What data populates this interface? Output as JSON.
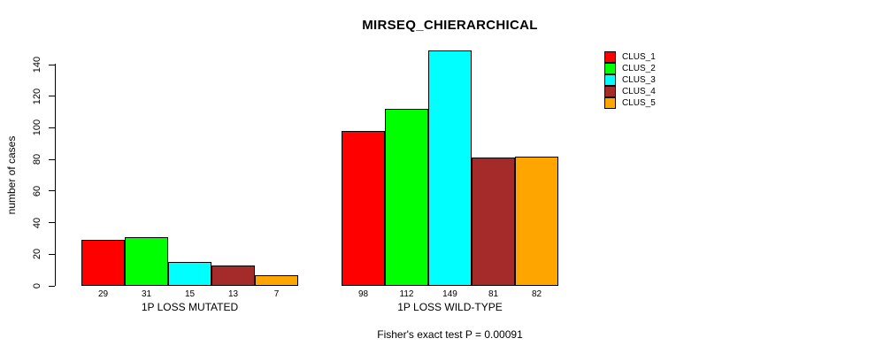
{
  "window": {
    "background": "#FFFFFF",
    "text_color": "#000000"
  },
  "chart_data": {
    "type": "bar",
    "title": "MIRSEQ_CHIERARCHICAL",
    "ylabel": "number of cases",
    "xlabel": "",
    "groups": [
      "1P LOSS MUTATED",
      "1P LOSS WILD-TYPE"
    ],
    "series": [
      {
        "name": "CLUS_1",
        "color": "#FF0000",
        "values": [
          29,
          98
        ]
      },
      {
        "name": "CLUS_2",
        "color": "#00FF00",
        "values": [
          31,
          112
        ]
      },
      {
        "name": "CLUS_3",
        "color": "#00FFFF",
        "values": [
          15,
          149
        ]
      },
      {
        "name": "CLUS_4",
        "color": "#A52A2A",
        "values": [
          13,
          81
        ]
      },
      {
        "name": "CLUS_5",
        "color": "#FFA500",
        "values": [
          7,
          82
        ]
      }
    ],
    "yticks": [
      0,
      20,
      40,
      60,
      80,
      100,
      120,
      140
    ],
    "ylim": [
      0,
      140
    ],
    "show_bar_values": true,
    "grid": false,
    "legend_position": "top-right",
    "annotation": "Fisher's exact test P = 0.00091"
  }
}
